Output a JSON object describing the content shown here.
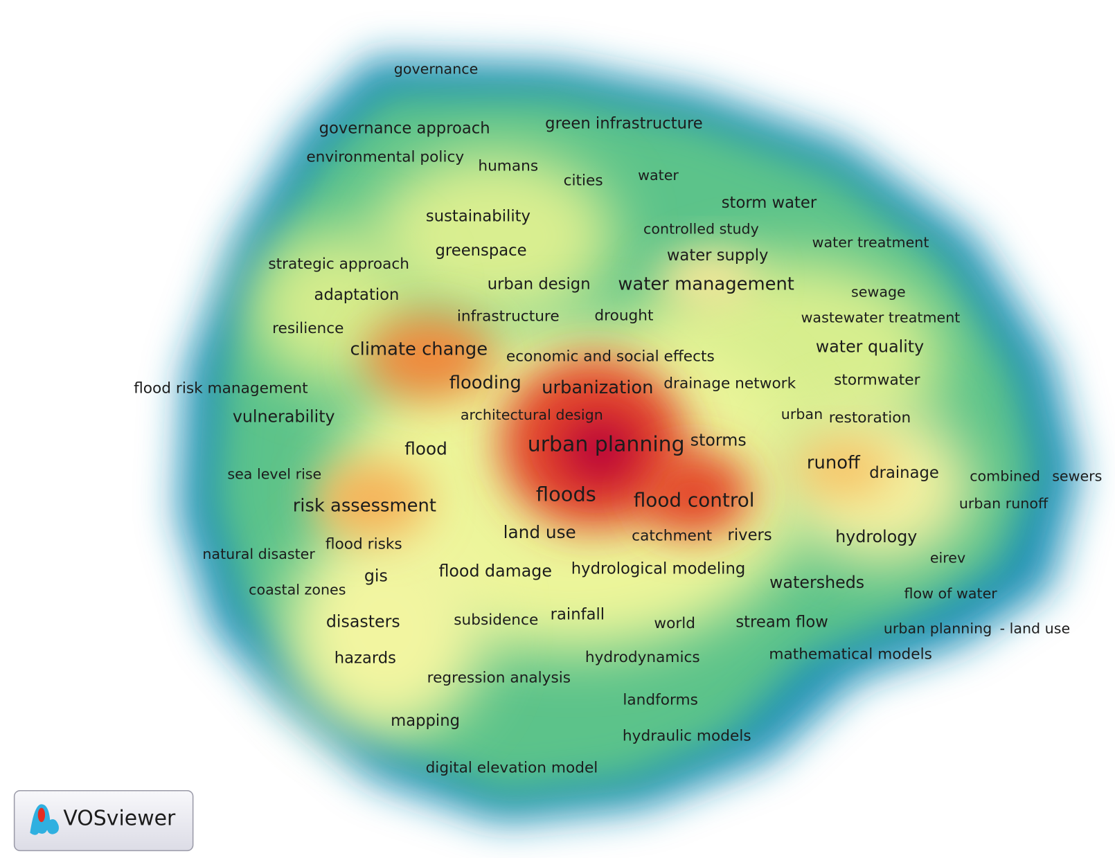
{
  "terms": [
    "governance",
    "governance approach",
    "green infrastructure",
    "environmental policy",
    "humans",
    "cities",
    "water",
    "storm water",
    "sustainability",
    "controlled study",
    "water treatment",
    "greenspace",
    "water supply",
    "strategic approach",
    "urban design",
    "water management",
    "sewage",
    "adaptation",
    "infrastructure",
    "drought",
    "wastewater treatment",
    "resilience",
    "climate change",
    "economic and social effects",
    "water quality",
    "flooding",
    "urbanization",
    "drainage network",
    "stormwater",
    "flood risk management",
    "vulnerability",
    "architectural design",
    "urban",
    "restoration",
    "urban planning",
    "storms",
    "flood",
    "runoff",
    "drainage",
    "combined",
    "sewers",
    "sea level rise",
    "floods",
    "flood control",
    "risk assessment",
    "urban runoff",
    "land use",
    "catchment",
    "rivers",
    "hydrology",
    "flood risks",
    "natural disaster",
    "eirev",
    "gis",
    "flood damage",
    "hydrological modeling",
    "watersheds",
    "coastal zones",
    "flow of water",
    "disasters",
    "subsidence",
    "rainfall",
    "world",
    "stream flow",
    "urban planning",
    "- land use",
    "mathematical models",
    "hazards",
    "hydrodynamics",
    "regression analysis",
    "landforms",
    "mapping",
    "hydraulic models",
    "digital elevation model"
  ],
  "logo": {
    "text": "VOSviewer"
  }
}
